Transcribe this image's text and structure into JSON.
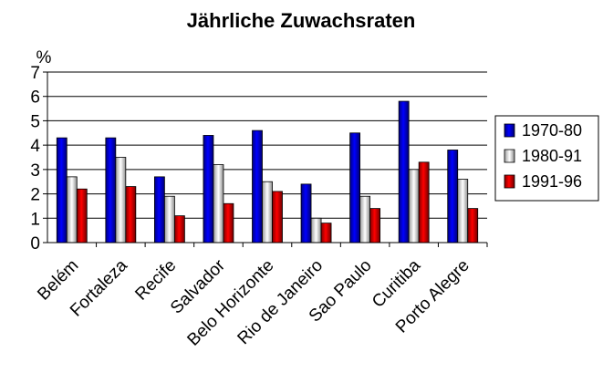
{
  "chart_data": {
    "type": "bar",
    "title": "Jährliche Zuwachsraten",
    "ylabel": "%",
    "xlabel": "",
    "ylim": [
      0,
      7
    ],
    "yticks": [
      0,
      1,
      2,
      3,
      4,
      5,
      6,
      7
    ],
    "grid": true,
    "legend_position": "right",
    "categories": [
      "Belém",
      "Fortaleza",
      "Recife",
      "Salvador",
      "Belo Horizonte",
      "Rio de Janeiro",
      "Sao Paulo",
      "Curitiba",
      "Porto Alegre"
    ],
    "series": [
      {
        "name": "1970-80",
        "color": "#0000ff",
        "values": [
          4.3,
          4.3,
          2.7,
          4.4,
          4.6,
          2.4,
          4.5,
          5.8,
          3.8
        ]
      },
      {
        "name": "1980-91",
        "color": "#d9d9d9",
        "values": [
          2.7,
          3.5,
          1.9,
          3.2,
          2.5,
          1.0,
          1.9,
          3.0,
          2.6
        ]
      },
      {
        "name": "1991-96",
        "color": "#ff0000",
        "values": [
          2.2,
          2.3,
          1.1,
          1.6,
          2.1,
          0.8,
          1.4,
          3.3,
          1.4
        ]
      }
    ]
  }
}
